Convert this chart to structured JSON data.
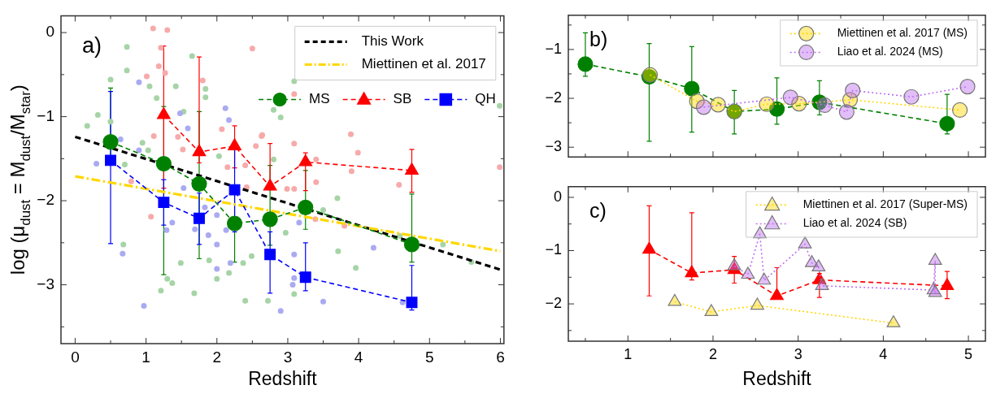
{
  "chart_data": [
    {
      "type": "line",
      "xlabel": "Redshift",
      "ylabel": "log (μ$_{dust}$ = M$_{dust}$/M$_{star}$)",
      "annotations": [
        "a)"
      ],
      "legend": "top right",
      "grid": false,
      "xlim": [
        -0.2,
        6.05
      ],
      "ylim": [
        -3.7,
        0.2
      ],
      "xticks": [
        0,
        {
          "value": 0.5,
          "label": null
        },
        1,
        {
          "value": 1.5,
          "label": null
        },
        2,
        {
          "value": 2.5,
          "label": null
        },
        3,
        {
          "value": 3.5,
          "label": null
        },
        4,
        {
          "value": 4.5,
          "label": null
        },
        5,
        {
          "value": 5.5,
          "label": null
        },
        6
      ],
      "yticks": [
        {
          "value": -3.5,
          "label": null
        },
        -3,
        {
          "value": -2.5,
          "label": null
        },
        -2,
        {
          "value": -1.5,
          "label": null
        },
        -1,
        {
          "value": -0.5,
          "label": null
        },
        0
      ],
      "series": [
        {
          "type": "scatter",
          "marker": "circle",
          "color": "#a6d4a6",
          "x": [
            0.17,
            0.32,
            0.5,
            0.5,
            0.73,
            0.73,
            0.7,
            0.68,
            0.95,
            1.03,
            1.05,
            1.15,
            1.21,
            1.3,
            1.37,
            1.42,
            1.53,
            1.49,
            1.65,
            1.68,
            1.84,
            1.84,
            1.89,
            2.0,
            2.17,
            2.4,
            2.37,
            2.49,
            2.03,
            3.09,
            2.8,
            2.9,
            2.8,
            3.7,
            3.5,
            2.97,
            3.71,
            3.96,
            3.09,
            2.72,
            5.19,
            5.59,
            5.99,
            4.58
          ],
          "values": [
            -1.11,
            -0.98,
            -0.56,
            -1.06,
            -0.17,
            -0.45,
            -1.57,
            -2.52,
            -1.31,
            -1.4,
            -0.64,
            -0.78,
            -3.07,
            -2.93,
            -2.98,
            -0.64,
            -0.94,
            -2.74,
            -0.28,
            -3.1,
            -0.67,
            -0.77,
            -2.71,
            -2.93,
            -2.86,
            -3.19,
            -2.74,
            -2.66,
            -1.47,
            -0.58,
            -0.92,
            -1.01,
            -1.51,
            -1.97,
            -2.11,
            -2.38,
            -2.6,
            -2.8,
            -3.11,
            -3.19,
            -2.52,
            -2.73,
            -0.87,
            -2.42
          ]
        },
        {
          "type": "scatter",
          "marker": "circle",
          "color": "#f7aaaa",
          "x": [
            1.1,
            1.3,
            1.21,
            1.18,
            1.27,
            1.01,
            1.8,
            2.5,
            1.11,
            1.45,
            1.52,
            2.07,
            2.63,
            2.55,
            0.79,
            1.07,
            2.4,
            2.42,
            2.15,
            2.64,
            3.09,
            3.09,
            3.89,
            3.99,
            3.9,
            3.4,
            3.4,
            2.99,
            3.09,
            3.39,
            3.8,
            4.57,
            5.99
          ],
          "values": [
            0.05,
            0.03,
            -0.18,
            -0.4,
            -0.48,
            -0.52,
            -0.57,
            -0.19,
            -1.23,
            -1.24,
            -1.39,
            -1.15,
            -1.23,
            -1.35,
            -1.77,
            -2.19,
            -1.58,
            -1.84,
            -1.6,
            -1.22,
            -0.73,
            -1.32,
            -1.21,
            -1.43,
            -1.65,
            -1.51,
            -1.78,
            -1.86,
            -1.86,
            -2.22,
            -2.3,
            -1.81,
            -1.6
          ]
        },
        {
          "type": "scatter",
          "marker": "circle",
          "color": "#aaaaf2",
          "x": [
            0.9,
            0.3,
            0.64,
            0.67,
            0.97,
            0.9,
            1.59,
            1.48,
            2.12,
            2.17,
            1.53,
            1.29,
            1.37,
            1.83,
            1.88,
            2.0,
            2.0,
            2.0,
            2.19,
            2.13,
            1.69,
            3.16,
            3.09,
            3.09,
            3.07,
            3.5,
            2.9,
            4.21,
            4.62
          ],
          "values": [
            -0.59,
            -1.56,
            -1.27,
            -2.63,
            -3.25,
            -1.4,
            -1.14,
            -0.96,
            -0.9,
            -1.04,
            -1.85,
            -2.35,
            -2.26,
            -2.08,
            -2.41,
            -2.17,
            -2.52,
            -2.81,
            -2.74,
            -2.35,
            -2.34,
            -2.26,
            -2.64,
            -2.92,
            -3.0,
            -3.2,
            -3.31,
            -2.56,
            -3.21
          ]
        },
        {
          "name": "This Work",
          "marker": "none",
          "line_style": "dashed",
          "color": "#000000",
          "x": [
            0,
            6
          ],
          "values": [
            -1.24,
            -2.82
          ]
        },
        {
          "name": "Miettinen et al. 2017",
          "marker": "none",
          "line_style": "dashdot",
          "color": "#ffd700",
          "x": [
            0,
            6
          ],
          "values": [
            -1.71,
            -2.6
          ]
        },
        {
          "name": "MS",
          "marker": "circle",
          "line_style": "dashed",
          "color": "#008000",
          "x": [
            0.5,
            1.25,
            1.75,
            2.25,
            2.75,
            3.25,
            4.75
          ],
          "values": [
            -1.3,
            -1.56,
            -1.8,
            -2.27,
            -2.22,
            -2.08,
            -2.52
          ],
          "errors": [
            [
              -1.55,
              -0.66
            ],
            [
              -2.88,
              -0.88
            ],
            [
              -2.69,
              -0.94
            ],
            [
              -2.73,
              -1.84
            ],
            [
              -2.53,
              -1.58
            ],
            [
              -2.34,
              -1.64
            ],
            [
              -2.73,
              -1.92
            ]
          ]
        },
        {
          "name": "SB",
          "marker": "triangle",
          "line_style": "dashed",
          "color": "#ff0000",
          "x": [
            1.25,
            1.75,
            2.25,
            2.75,
            3.25,
            4.75
          ],
          "values": [
            -0.98,
            -1.42,
            -1.35,
            -1.83,
            -1.54,
            -1.64
          ],
          "errors": [
            [
              -1.85,
              -0.16
            ],
            [
              -1.55,
              -0.29
            ],
            [
              -1.61,
              -1.11
            ],
            [
              -1.87,
              -1.32
            ],
            [
              -1.88,
              -1.43
            ],
            [
              -1.9,
              -1.39
            ]
          ]
        },
        {
          "name": "QH",
          "marker": "square",
          "line_style": "dashed",
          "color": "#0000ff",
          "x": [
            0.5,
            1.25,
            1.75,
            2.25,
            2.75,
            3.25,
            4.75
          ],
          "values": [
            -1.52,
            -2.02,
            -2.21,
            -1.87,
            -2.64,
            -2.91,
            -3.21
          ],
          "errors": [
            [
              -2.51,
              -0.7
            ],
            [
              -2.29,
              -1.75
            ],
            [
              -2.52,
              -1.91
            ],
            [
              -2.37,
              -1.34
            ],
            [
              -3.1,
              -2.37
            ],
            [
              -3.07,
              -2.5
            ],
            [
              -3.3,
              -2.77
            ]
          ]
        }
      ]
    },
    {
      "type": "line",
      "annotations": [
        "b)"
      ],
      "legend": "top right",
      "grid": false,
      "tick_labels": "y",
      "xlim": [
        0.3,
        5.2
      ],
      "ylim": [
        -3.2,
        -0.3
      ],
      "xticks": [
        {
          "value": 0.5,
          "label": null
        },
        1,
        {
          "value": 1.5,
          "label": null
        },
        2,
        {
          "value": 2.5,
          "label": null
        },
        3,
        {
          "value": 3.5,
          "label": null
        },
        4,
        {
          "value": 4.5,
          "label": null
        },
        5
      ],
      "yticks": [
        -3,
        {
          "value": -2.5,
          "label": null
        },
        -2,
        {
          "value": -1.5,
          "label": null
        },
        -1,
        {
          "value": -0.5,
          "label": null
        }
      ],
      "series": [
        {
          "marker": "circle",
          "line_style": "dashed",
          "color": "#008000",
          "x": [
            0.5,
            1.25,
            1.75,
            2.25,
            2.75,
            3.25,
            4.75
          ],
          "values": [
            -1.3,
            -1.56,
            -1.8,
            -2.27,
            -2.22,
            -2.08,
            -2.52
          ],
          "errors": [
            [
              -1.55,
              -0.66
            ],
            [
              -2.88,
              -0.88
            ],
            [
              -2.69,
              -0.94
            ],
            [
              -2.73,
              -1.84
            ],
            [
              -2.53,
              -1.58
            ],
            [
              -2.34,
              -1.64
            ],
            [
              -2.73,
              -1.92
            ]
          ]
        },
        {
          "name": "Miettinen et al. 2017 (MS)",
          "marker": "circle",
          "line_style": "dotted",
          "color": "#ffd700",
          "x": [
            1.26,
            1.81,
            2.06,
            2.25,
            2.63,
            3.01,
            3.61,
            4.9
          ],
          "values": [
            -1.52,
            -2.06,
            -2.13,
            -2.27,
            -2.12,
            -2.11,
            -2.03,
            -2.24
          ]
        },
        {
          "name": "Liao et al. 2024 (MS)",
          "marker": "circle",
          "line_style": "dotted",
          "color": "#bf6fef",
          "x": [
            1.89,
            2.91,
            3.31,
            3.57,
            3.64,
            4.33,
            4.99
          ],
          "values": [
            -2.18,
            -1.98,
            -2.14,
            -2.28,
            -1.84,
            -1.97,
            -1.76
          ]
        }
      ]
    },
    {
      "type": "line",
      "xlabel": "Redshift",
      "annotations": [
        "c)"
      ],
      "legend": "top right",
      "grid": false,
      "xlim": [
        0.3,
        5.2
      ],
      "ylim": [
        -2.7,
        0.2
      ],
      "xticks": [
        {
          "value": 0.5,
          "label": null
        },
        1,
        {
          "value": 1.5,
          "label": null
        },
        2,
        {
          "value": 2.5,
          "label": null
        },
        3,
        {
          "value": 3.5,
          "label": null
        },
        4,
        {
          "value": 4.5,
          "label": null
        },
        5
      ],
      "yticks": [
        {
          "value": -2.5,
          "label": null
        },
        -2,
        {
          "value": -1.5,
          "label": null
        },
        -1,
        {
          "value": -0.5,
          "label": null
        },
        0
      ],
      "series": [
        {
          "marker": "triangle",
          "line_style": "dashed",
          "color": "#ff0000",
          "x": [
            1.25,
            1.75,
            2.25,
            2.75,
            3.25,
            4.75
          ],
          "values": [
            -0.98,
            -1.42,
            -1.36,
            -1.85,
            -1.55,
            -1.66
          ],
          "errors": [
            [
              -1.85,
              -0.16
            ],
            [
              -1.55,
              -0.29
            ],
            [
              -1.61,
              -1.11
            ],
            [
              -1.87,
              -1.32
            ],
            [
              -1.88,
              -1.43
            ],
            [
              -1.9,
              -1.39
            ]
          ]
        },
        {
          "name": "Miettinen et al. 2017 (Super-MS)",
          "marker": "triangle",
          "line_style": "dotted",
          "color": "#ffd700",
          "x": [
            1.55,
            1.98,
            2.52,
            4.12
          ],
          "values": [
            -1.96,
            -2.15,
            -2.03,
            -2.36
          ]
        },
        {
          "name": "Liao et al. 2024 (SB)",
          "marker": "triangle",
          "line_style": "dotted",
          "color": "#bf6fef",
          "x": [
            2.25,
            2.41,
            2.55,
            2.6,
            3.08,
            3.16,
            3.24,
            3.28,
            4.59,
            4.61,
            4.61
          ],
          "values": [
            -1.29,
            -1.45,
            -0.69,
            -1.56,
            -0.88,
            -1.23,
            -1.31,
            -1.66,
            -1.74,
            -1.19,
            -1.79
          ]
        }
      ]
    }
  ]
}
